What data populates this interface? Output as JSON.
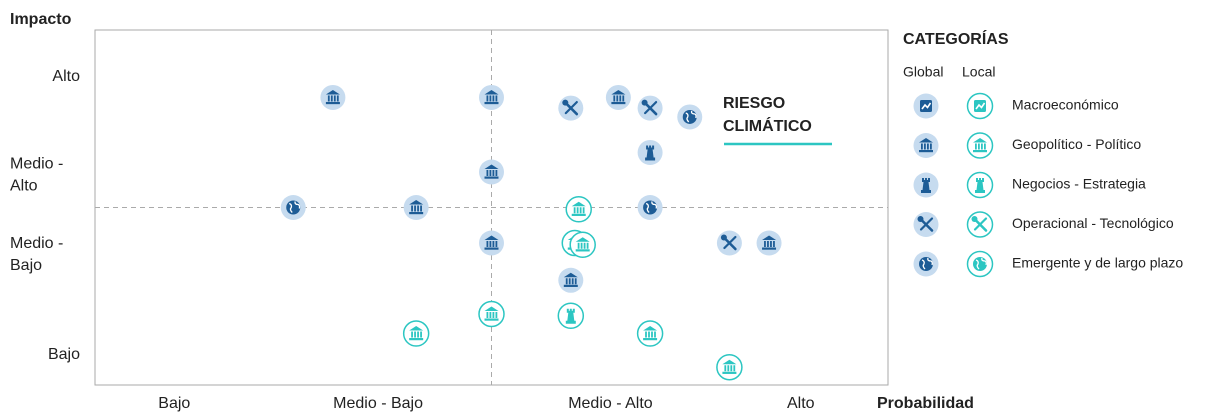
{
  "chart_data": {
    "type": "scatter",
    "y_title": "Impacto",
    "x_title": "Probabilidad",
    "xlim": [
      0,
      100
    ],
    "ylim": [
      0,
      100
    ],
    "xticks": [
      {
        "value": 10,
        "label": "Bajo"
      },
      {
        "value": 35.7,
        "label": "Medio - Bajo"
      },
      {
        "value": 65,
        "label": "Medio - Alto"
      },
      {
        "value": 89,
        "label": "Alto"
      }
    ],
    "yticks": [
      {
        "value": 8.5,
        "label": "Bajo"
      },
      {
        "value": 36.6,
        "label": "Medio - Bajo"
      },
      {
        "value": 59,
        "label": "Medio - Alto"
      },
      {
        "value": 86.8,
        "label": "Alto"
      }
    ],
    "dividers": {
      "x": 50,
      "y": 50
    },
    "legend_title": "CATEGORÍAS",
    "category_names": [
      "Macroeconómico",
      "Geopolítico - Político",
      "Negocios - Estrategia",
      "Operacional - Tecnológico",
      "Emergente y de largo plazo"
    ],
    "annotation_lines": [
      "RIESGO",
      "CLIMÁTICO"
    ],
    "annotation_color": "#2cc6c2",
    "series": [
      {
        "name": "Global",
        "color": "#1d5c96",
        "fill": "#c6dbef",
        "x": [
          30,
          50,
          60,
          66,
          70,
          75,
          70,
          50,
          25,
          40.5,
          70,
          50,
          80,
          85,
          60
        ],
        "y": [
          81,
          81,
          78,
          81,
          78,
          75.5,
          65.5,
          60,
          50,
          50,
          50,
          40,
          40,
          40,
          29.5
        ],
        "category": [
          "Geopolítico - Político",
          "Geopolítico - Político",
          "Operacional - Tecnológico",
          "Geopolítico - Político",
          "Operacional - Tecnológico",
          "Emergente y de largo plazo",
          "Negocios - Estrategia",
          "Geopolítico - Político",
          "Emergente y de largo plazo",
          "Geopolítico - Político",
          "Emergente y de largo plazo",
          "Geopolítico - Político",
          "Operacional - Tecnológico",
          "Geopolítico - Político",
          "Geopolítico - Político"
        ]
      },
      {
        "name": "Local",
        "color": "#2cc6c2",
        "fill": "#ffffff",
        "x": [
          61,
          60.5,
          61.5,
          50,
          60,
          40.5,
          70,
          80
        ],
        "y": [
          49.5,
          40,
          39.5,
          20,
          19.5,
          14.5,
          14.5,
          5
        ],
        "category": [
          "Geopolítico - Político",
          "Geopolítico - Político",
          "Geopolítico - Político",
          "Geopolítico - Político",
          "Negocios - Estrategia",
          "Geopolítico - Político",
          "Geopolítico - Político",
          "Geopolítico - Político"
        ]
      }
    ]
  }
}
